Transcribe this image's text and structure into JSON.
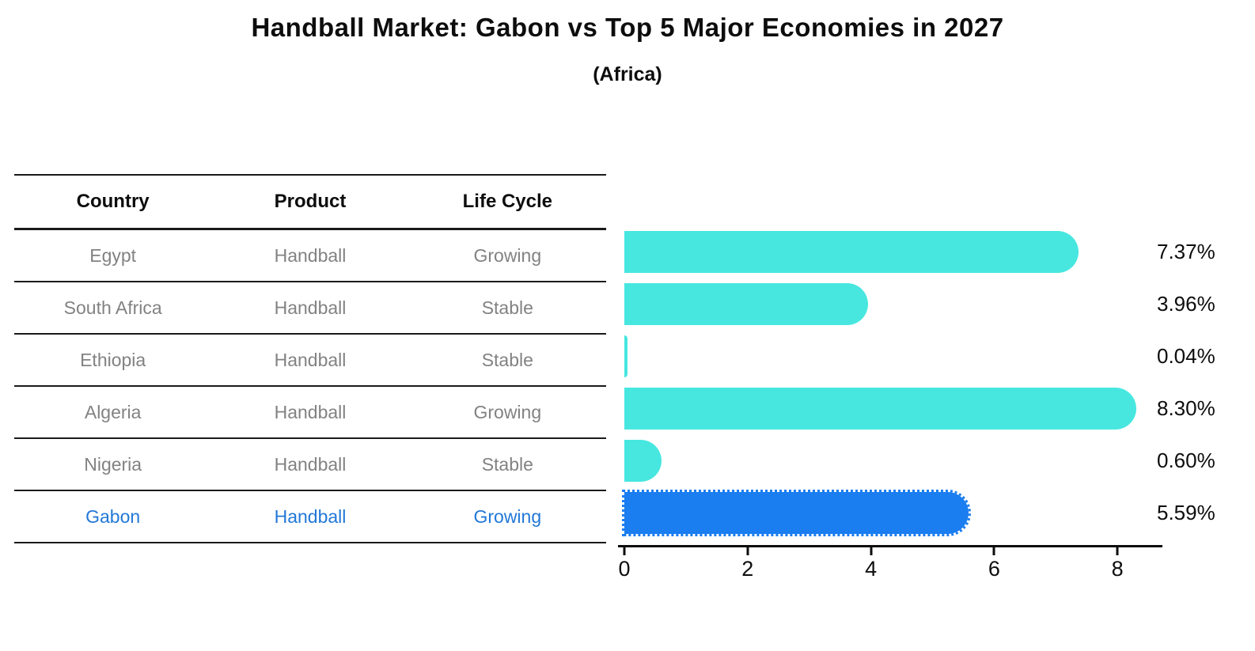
{
  "title": "Handball Market: Gabon vs Top 5 Major Economies in 2027",
  "subtitle": "(Africa)",
  "table": {
    "headers": [
      "Country",
      "Product",
      "Life Cycle"
    ],
    "rows": [
      {
        "country": "Egypt",
        "product": "Handball",
        "life_cycle": "Growing",
        "highlighted": false
      },
      {
        "country": "South Africa",
        "product": "Handball",
        "life_cycle": "Stable",
        "highlighted": false
      },
      {
        "country": "Ethiopia",
        "product": "Handball",
        "life_cycle": "Stable",
        "highlighted": false
      },
      {
        "country": "Algeria",
        "product": "Handball",
        "life_cycle": "Growing",
        "highlighted": false
      },
      {
        "country": "Nigeria",
        "product": "Handball",
        "life_cycle": "Stable",
        "highlighted": false
      },
      {
        "country": "Gabon",
        "product": "Handball",
        "life_cycle": "Growing",
        "highlighted": true
      }
    ]
  },
  "chart_data": {
    "type": "bar",
    "orientation": "horizontal",
    "title": "Handball Market: Gabon vs Top 5 Major Economies in 2027",
    "subtitle": "(Africa)",
    "categories": [
      "Egypt",
      "South Africa",
      "Ethiopia",
      "Algeria",
      "Nigeria",
      "Gabon"
    ],
    "values": [
      7.37,
      3.96,
      0.04,
      8.3,
      0.6,
      5.59
    ],
    "value_labels": [
      "7.37%",
      "3.96%",
      "0.04%",
      "8.30%",
      "0.60%",
      "5.59%"
    ],
    "x_tick_labels": [
      "0",
      "2",
      "4",
      "6",
      "8"
    ],
    "x_tick_values": [
      0,
      2,
      4,
      6,
      8
    ],
    "xlim": [
      0,
      8.7
    ],
    "grid": false,
    "legend_position": "none",
    "highlight_index": 5,
    "bar_color": "#47E7E0",
    "highlight_bar_color": "#1A7DF0"
  },
  "colors": {
    "background": "#ffffff",
    "ink": "#0d0d0d",
    "table_line": "#1a1a1a",
    "row_text": "#828282",
    "highlight_text": "#2278D8"
  }
}
